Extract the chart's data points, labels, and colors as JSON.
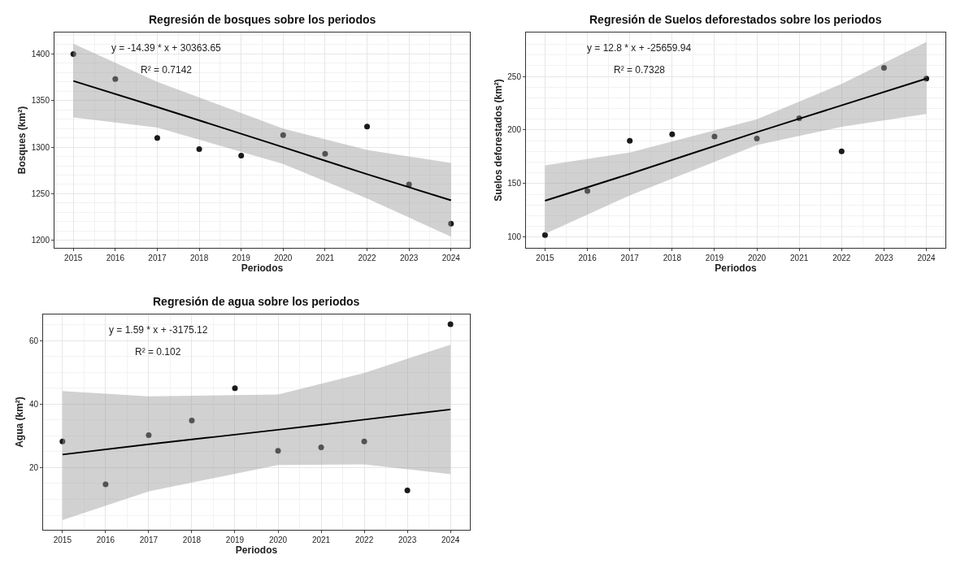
{
  "chart_data": [
    {
      "type": "scatter",
      "title": "Regresión de bosques sobre los periodos",
      "xlabel": "Periodos",
      "ylabel": "Bosques (km²)",
      "annotations": [
        "y = -14.39 * x + 30363.65",
        "R² = 0.7142"
      ],
      "x": [
        2015,
        2016,
        2017,
        2018,
        2019,
        2020,
        2021,
        2022,
        2023,
        2024
      ],
      "series": [
        {
          "color": "#1a1a1a",
          "marker": "circle",
          "values": [
            1400,
            1373,
            1310,
            1298,
            1291,
            1313,
            1293,
            1322,
            1260,
            1218
          ]
        },
        {
          "type": "line",
          "color": "#000000",
          "x": [
            2015,
            2017,
            2020,
            2022,
            2024
          ],
          "values": [
            1371,
            1343,
            1300,
            1271,
            1243
          ],
          "lower": [
            1332,
            1321,
            1282,
            1245,
            1204
          ],
          "upper": [
            1411,
            1370,
            1320,
            1297,
            1283
          ]
        }
      ],
      "xlim": [
        2014.55,
        2024.45
      ],
      "ylim": [
        1192,
        1423
      ],
      "xticks": [
        2015,
        2016,
        2017,
        2018,
        2019,
        2020,
        2021,
        2022,
        2023,
        2024
      ],
      "yticks": [
        1200,
        1250,
        1300,
        1350,
        1400
      ],
      "grid": true
    },
    {
      "type": "scatter",
      "title": "Regresión de Suelos deforestados sobre los periodos",
      "xlabel": "Periodos",
      "ylabel": "Suelos deforestados (km²)",
      "annotations": [
        "y = 12.8 * x + -25659.94",
        "R² = 0.7328"
      ],
      "x": [
        2015,
        2016,
        2017,
        2018,
        2019,
        2020,
        2021,
        2022,
        2023,
        2024
      ],
      "series": [
        {
          "color": "#1a1a1a",
          "marker": "circle",
          "values": [
            102,
            143,
            190,
            196,
            194,
            192,
            211,
            180,
            258,
            248
          ]
        },
        {
          "type": "line",
          "color": "#000000",
          "x": [
            2015,
            2017,
            2020,
            2022,
            2024
          ],
          "values": [
            134,
            159,
            198,
            223,
            248
          ],
          "lower": [
            103,
            139,
            186,
            203,
            215
          ],
          "upper": [
            167,
            179,
            210,
            243,
            282
          ]
        }
      ],
      "xlim": [
        2014.55,
        2024.45
      ],
      "ylim": [
        90,
        291
      ],
      "xticks": [
        2015,
        2016,
        2017,
        2018,
        2019,
        2020,
        2021,
        2022,
        2023,
        2024
      ],
      "yticks": [
        100,
        150,
        200,
        250
      ],
      "grid": true
    },
    {
      "type": "scatter",
      "title": "Regresión de agua sobre los periodos",
      "xlabel": "Periodos",
      "ylabel": "Agua (km²)",
      "annotations": [
        "y = 1.59 * x + -3175.12",
        "R² = 0.102"
      ],
      "x": [
        2015,
        2016,
        2017,
        2018,
        2019,
        2020,
        2021,
        2022,
        2023,
        2024
      ],
      "series": [
        {
          "color": "#1a1a1a",
          "marker": "circle",
          "values": [
            28.2,
            14.7,
            30.2,
            34.8,
            45.0,
            25.3,
            26.4,
            28.2,
            12.8,
            65.1
          ]
        },
        {
          "type": "line",
          "color": "#000000",
          "x": [
            2015,
            2017,
            2020,
            2022,
            2024
          ],
          "values": [
            24.1,
            27.3,
            31.9,
            35.1,
            38.3
          ],
          "lower": [
            3.5,
            12.5,
            20.8,
            21.0,
            17.9
          ],
          "upper": [
            44.1,
            42.4,
            43.0,
            49.8,
            58.7
          ]
        }
      ],
      "xlim": [
        2014.55,
        2024.45
      ],
      "ylim": [
        0.4,
        68.2
      ],
      "xticks": [
        2015,
        2016,
        2017,
        2018,
        2019,
        2020,
        2021,
        2022,
        2023,
        2024
      ],
      "yticks": [
        20,
        40,
        60
      ],
      "grid": true
    }
  ]
}
